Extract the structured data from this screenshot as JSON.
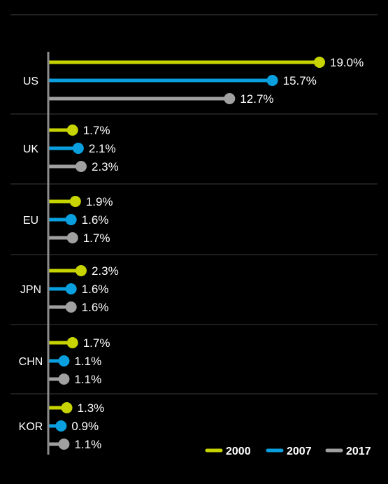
{
  "chart_data": {
    "type": "bar",
    "orientation": "horizontal",
    "style": "lollipop",
    "categories": [
      "US",
      "UK",
      "EU",
      "JPN",
      "CHN",
      "KOR"
    ],
    "series": [
      {
        "name": "2000",
        "color": "#c8d400",
        "values": [
          19.0,
          1.7,
          1.9,
          2.3,
          1.7,
          1.3
        ],
        "labels": [
          "19.0%",
          "1.7%",
          "1.9%",
          "2.3%",
          "1.7%",
          "1.3%"
        ]
      },
      {
        "name": "2007",
        "color": "#0aa0e0",
        "values": [
          15.7,
          2.1,
          1.6,
          1.6,
          1.1,
          0.9
        ],
        "labels": [
          "15.7%",
          "2.1%",
          "1.6%",
          "1.6%",
          "1.1%",
          "0.9%"
        ]
      },
      {
        "name": "2017",
        "color": "#a0a0a0",
        "values": [
          12.7,
          2.3,
          1.7,
          1.6,
          1.1,
          1.1
        ],
        "labels": [
          "12.7%",
          "2.3%",
          "1.7%",
          "1.6%",
          "1.1%",
          "1.1%"
        ]
      }
    ],
    "xlim": [
      0,
      19.0
    ],
    "legend": {
      "position": "bottom-right"
    },
    "grid": false
  }
}
